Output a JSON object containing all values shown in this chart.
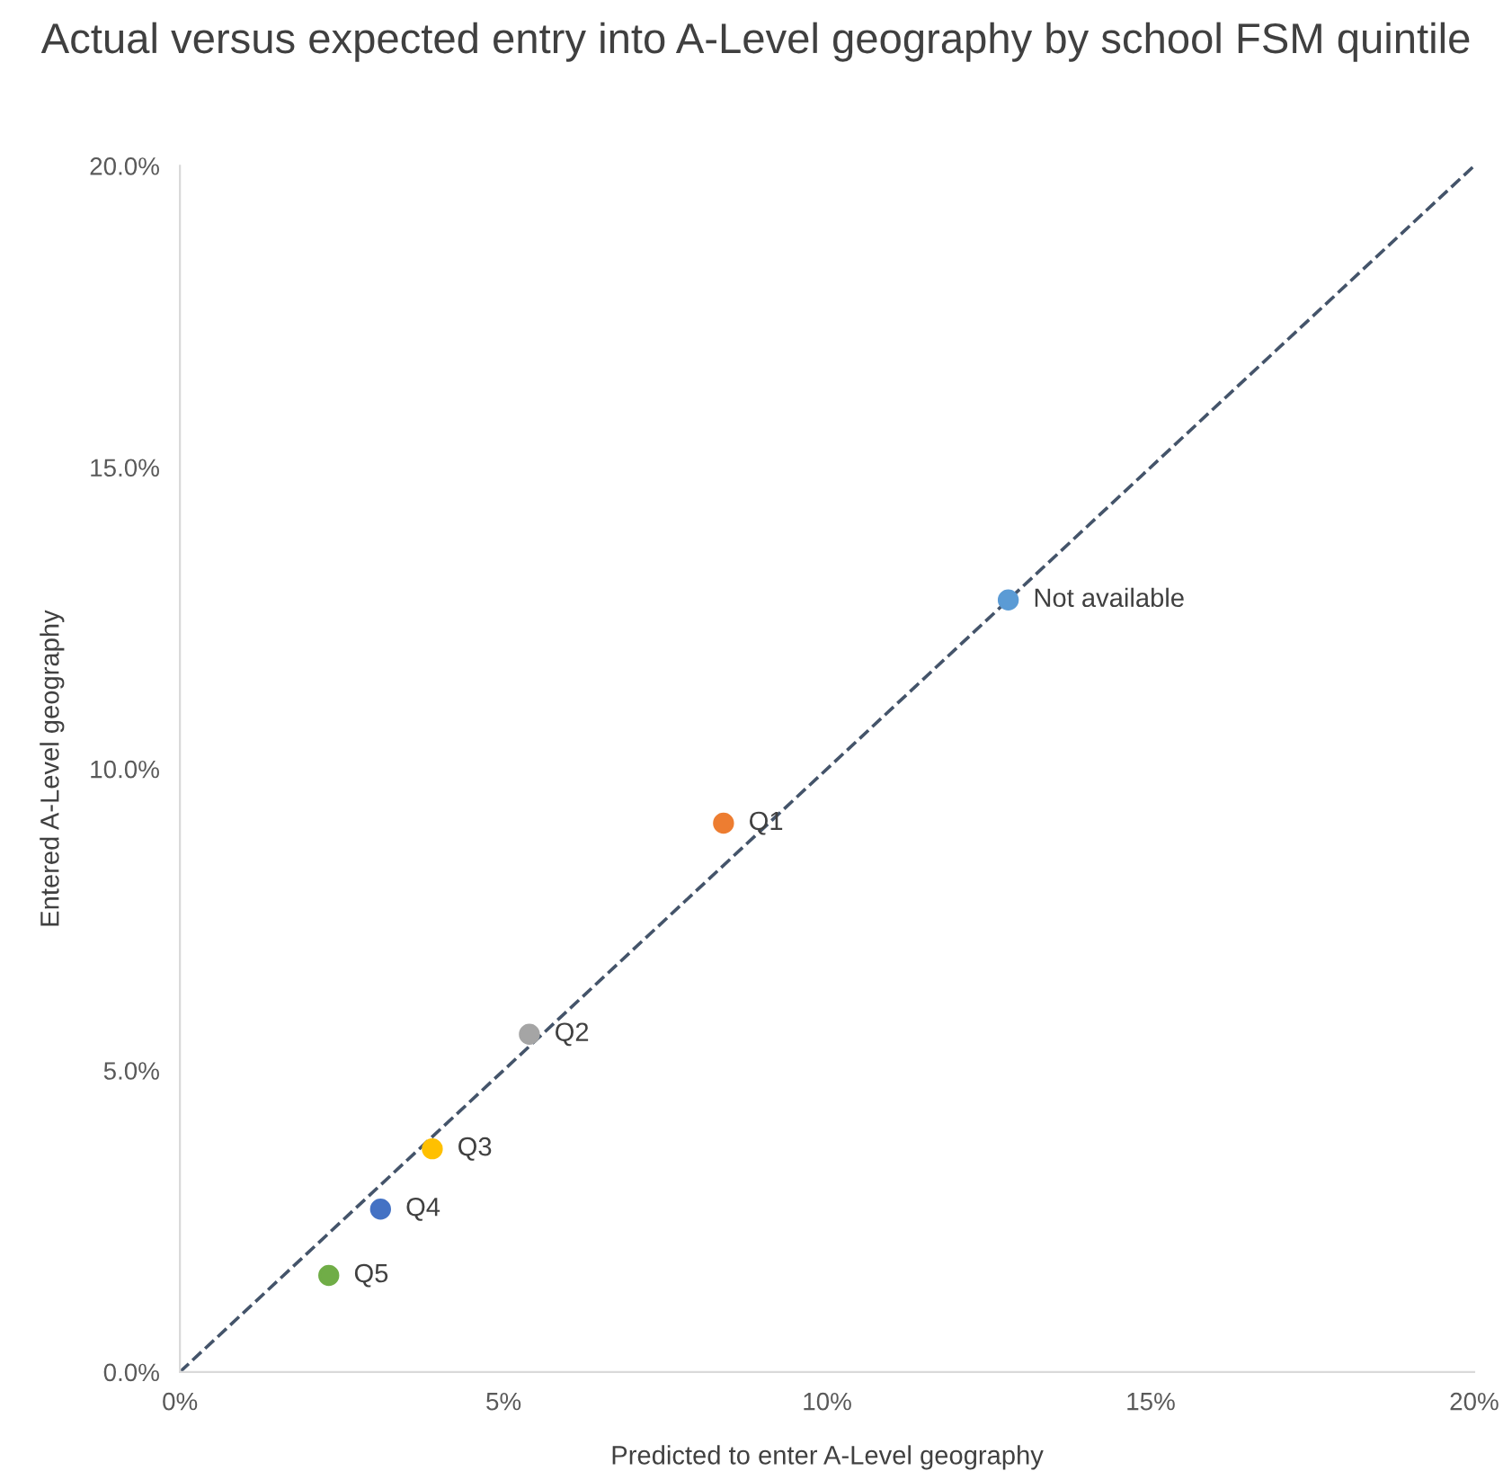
{
  "chart_data": {
    "type": "scatter",
    "title": "Actual versus expected entry into A-Level geography by school FSM quintile",
    "xlabel": "Predicted to enter A-Level geography",
    "ylabel": "Entered A-Level geography",
    "xlim": [
      0,
      20
    ],
    "ylim": [
      0,
      20
    ],
    "xticks": [
      {
        "value": 0,
        "label": "0%"
      },
      {
        "value": 5,
        "label": "5%"
      },
      {
        "value": 10,
        "label": "10%"
      },
      {
        "value": 15,
        "label": "15%"
      },
      {
        "value": 20,
        "label": "20%"
      }
    ],
    "yticks": [
      {
        "value": 0,
        "label": "0.0%"
      },
      {
        "value": 5,
        "label": "5.0%"
      },
      {
        "value": 10,
        "label": "10.0%"
      },
      {
        "value": 15,
        "label": "15.0%"
      },
      {
        "value": 20,
        "label": "20.0%"
      }
    ],
    "grid": false,
    "legend": false,
    "marker": "circle",
    "series": [
      {
        "type": "line",
        "x": [
          0,
          20
        ],
        "values": [
          0,
          20
        ],
        "color": "#44546a",
        "line_style": "dashed",
        "marker": "none"
      },
      {
        "name": "Not available",
        "x": [
          12.8
        ],
        "values": [
          12.8
        ],
        "color": "#5b9bd5"
      },
      {
        "name": "Q1",
        "x": [
          8.4
        ],
        "values": [
          9.1
        ],
        "color": "#ed7d31"
      },
      {
        "name": "Q2",
        "x": [
          5.4
        ],
        "values": [
          5.6
        ],
        "color": "#a5a5a5"
      },
      {
        "name": "Q3",
        "x": [
          3.9
        ],
        "values": [
          3.7
        ],
        "color": "#ffc000"
      },
      {
        "name": "Q4",
        "x": [
          3.1
        ],
        "values": [
          2.7
        ],
        "color": "#4472c4"
      },
      {
        "name": "Q5",
        "x": [
          2.3
        ],
        "values": [
          1.6
        ],
        "color": "#70ad47"
      }
    ]
  }
}
